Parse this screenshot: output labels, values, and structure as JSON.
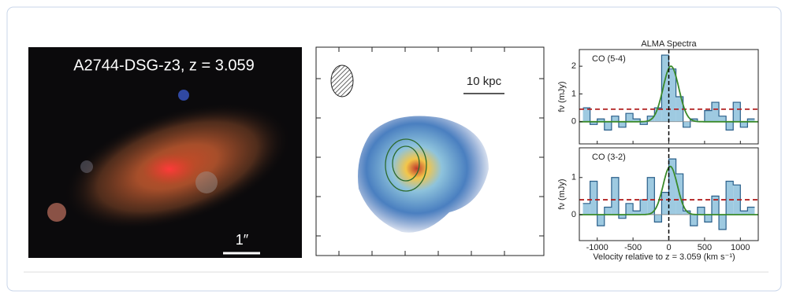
{
  "image_panel": {
    "label": "A2744-DSG-z3, z = 3.059",
    "scale_label": "1″"
  },
  "map_panel": {
    "scale_label": "10 kpc"
  },
  "chart_data": [
    {
      "type": "step",
      "title": "ALMA Spectra",
      "label": "CO (5-4)",
      "ylabel": "fν (mJy)",
      "x": [
        -1150,
        -1050,
        -950,
        -850,
        -750,
        -650,
        -550,
        -450,
        -350,
        -250,
        -150,
        -50,
        50,
        150,
        250,
        350,
        450,
        550,
        650,
        750,
        850,
        950,
        1050,
        1150
      ],
      "values": [
        0.5,
        -0.1,
        0.1,
        -0.3,
        0.2,
        -0.2,
        0.3,
        0.1,
        -0.1,
        0.2,
        0.5,
        2.4,
        1.9,
        0.9,
        -0.2,
        0.1,
        0.0,
        0.4,
        0.7,
        0.2,
        -0.3,
        0.7,
        -0.2,
        0.1
      ],
      "color": "#9ecae1",
      "xlim": [
        -1250,
        1250
      ],
      "ylim": [
        -0.8,
        2.6
      ],
      "yticks": [
        0,
        1,
        2
      ],
      "xticks": [
        -1000,
        -500,
        0,
        500,
        1000
      ],
      "threshold": 0.45,
      "threshold_color": "#b22222",
      "fit": {
        "amplitude": 2.0,
        "center": 30,
        "sigma": 110,
        "color": "#3a8a2a"
      }
    },
    {
      "type": "step",
      "label": "CO (3-2)",
      "ylabel": "fν (mJy)",
      "xlabel": "Velocity relative to z = 3.059 (km s⁻¹)",
      "x": [
        -1150,
        -1050,
        -950,
        -850,
        -750,
        -650,
        -550,
        -450,
        -350,
        -250,
        -150,
        -50,
        50,
        150,
        250,
        350,
        450,
        550,
        650,
        750,
        850,
        950,
        1050,
        1150
      ],
      "values": [
        0.3,
        0.9,
        -0.3,
        0.2,
        1.0,
        -0.1,
        0.3,
        0.1,
        0.4,
        1.0,
        -0.2,
        0.6,
        1.5,
        1.1,
        0.1,
        -0.3,
        0.2,
        -0.2,
        0.5,
        -0.4,
        0.9,
        0.8,
        0.1,
        0.2
      ],
      "color": "#9ecae1",
      "xlim": [
        -1250,
        1250
      ],
      "ylim": [
        -0.7,
        1.8
      ],
      "yticks": [
        0,
        1
      ],
      "xticks": [
        -1000,
        -500,
        0,
        500,
        1000
      ],
      "threshold": 0.4,
      "threshold_color": "#b22222",
      "fit": {
        "amplitude": 1.3,
        "center": 20,
        "sigma": 100,
        "color": "#3a8a2a"
      }
    }
  ]
}
